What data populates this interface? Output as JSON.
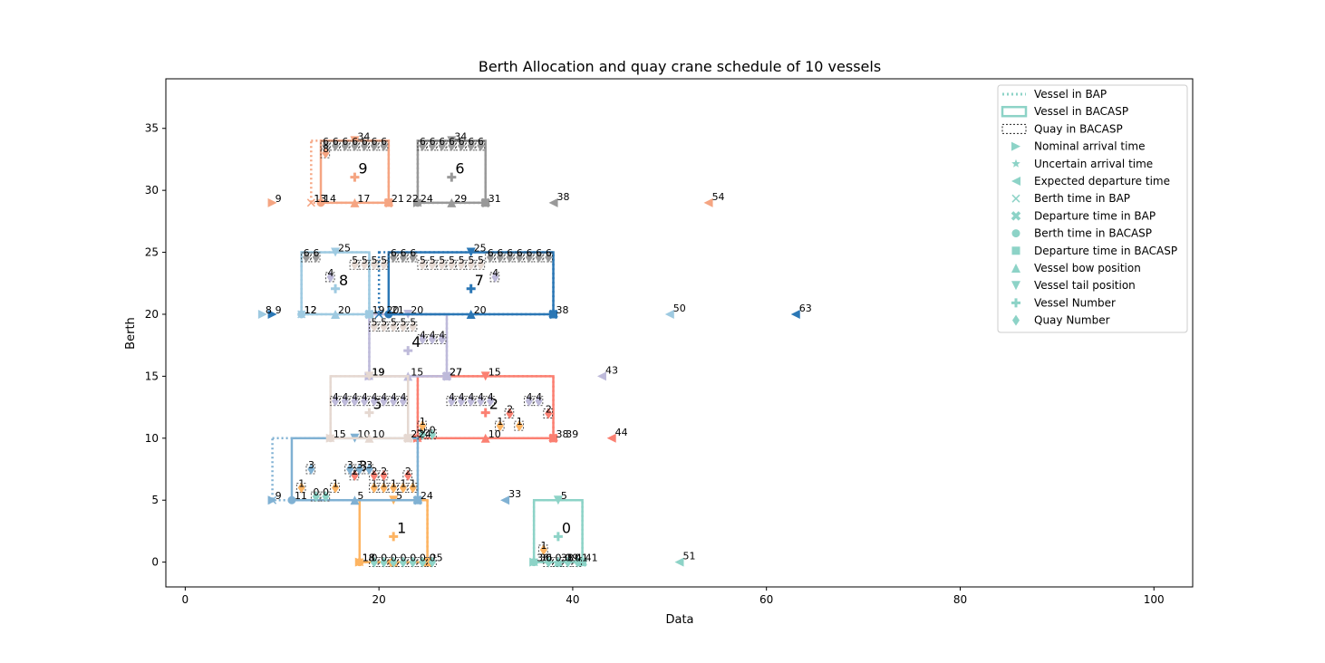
{
  "chart_data": {
    "type": "scatter",
    "title": "Berth Allocation and quay crane schedule  of 10 vessels",
    "xlabel": "Data",
    "ylabel": "Berth",
    "xlim": [
      -2,
      104
    ],
    "ylim": [
      -2,
      39
    ],
    "xticks": [
      "0",
      "20",
      "40",
      "60",
      "80",
      "100"
    ],
    "yticks": [
      "0",
      "5",
      "10",
      "15",
      "20",
      "25",
      "30",
      "35"
    ],
    "legend_position": "top-right",
    "legend": [
      {
        "label": "Vessel in BAP",
        "symbol": "dotted-line"
      },
      {
        "label": "Vessel in BACASP",
        "symbol": "solid-rect"
      },
      {
        "label": "Quay in BACASP",
        "symbol": "dashed-rect"
      },
      {
        "label": "Nominal arrival time",
        "symbol": "triangle-right"
      },
      {
        "label": "Uncertain arrival time",
        "symbol": "star"
      },
      {
        "label": "Expected departure time",
        "symbol": "triangle-left"
      },
      {
        "label": "Berth time in BAP",
        "symbol": "x"
      },
      {
        "label": "Departure time in BAP",
        "symbol": "x-filled"
      },
      {
        "label": "Berth time in BACASP",
        "symbol": "circle"
      },
      {
        "label": "Departure time in BACASP",
        "symbol": "square"
      },
      {
        "label": "Vessel bow position",
        "symbol": "triangle-up"
      },
      {
        "label": "Vessel tail position",
        "symbol": "triangle-down"
      },
      {
        "label": "Vessel Number",
        "symbol": "plus"
      },
      {
        "label": "Quay Number",
        "symbol": "diamond"
      }
    ],
    "vessels": [
      {
        "id": "0",
        "color": "#8dd3c7",
        "bap": [
          36,
          0,
          41,
          5
        ],
        "bacasp": [
          36,
          0,
          41,
          5
        ],
        "center": [
          38.5,
          2.5
        ],
        "nominal": [
          36,
          0
        ],
        "expected": [
          51,
          0
        ],
        "expected_label": "51",
        "labels": [
          [
            36,
            0,
            "36"
          ],
          [
            39,
            0,
            "39"
          ],
          [
            41,
            0,
            "41"
          ],
          [
            38.5,
            5,
            "5"
          ]
        ]
      },
      {
        "id": "1",
        "color": "#fdb462",
        "bap": [
          18,
          0,
          25,
          5
        ],
        "bacasp": [
          18,
          0,
          25,
          5
        ],
        "center": [
          21.5,
          2.5
        ],
        "nominal": [
          18,
          0
        ],
        "expected": [
          21,
          0
        ],
        "expected_label": "",
        "labels": [
          [
            18,
            0,
            "18"
          ],
          [
            25,
            0,
            "25"
          ],
          [
            21.5,
            5,
            "5"
          ]
        ]
      },
      {
        "id": "2",
        "color": "#fb8072",
        "bap": [
          24,
          10,
          38,
          15
        ],
        "bacasp": [
          24,
          10,
          38,
          15
        ],
        "center": [
          31,
          12.5
        ],
        "nominal": [
          24,
          10
        ],
        "expected": [
          44,
          10
        ],
        "expected_label": "44",
        "labels": [
          [
            38,
            10,
            "38"
          ],
          [
            39,
            10,
            "39"
          ],
          [
            31,
            10,
            "10"
          ],
          [
            31,
            15,
            "15"
          ]
        ]
      },
      {
        "id": "3",
        "color": "#80b1d3",
        "bap": [
          9,
          5,
          24,
          10
        ],
        "bacasp": [
          11,
          5,
          24,
          10
        ],
        "center": [
          17.5,
          7.5
        ],
        "nominal": [
          9,
          5
        ],
        "expected": [
          33,
          5
        ],
        "expected_label": "33",
        "labels": [
          [
            9,
            5,
            "9"
          ],
          [
            11,
            5,
            "11"
          ],
          [
            24,
            5,
            "24"
          ],
          [
            17.5,
            5,
            "5"
          ],
          [
            17.5,
            10,
            "10"
          ]
        ]
      },
      {
        "id": "4",
        "color": "#bebada",
        "bap": [
          19,
          15,
          27,
          20
        ],
        "bacasp": [
          19,
          15,
          27,
          20
        ],
        "center": [
          23,
          17.5
        ],
        "nominal": [
          19,
          15
        ],
        "expected": [
          43,
          15
        ],
        "expected_label": "43",
        "labels": [
          [
            19,
            15,
            "19"
          ],
          [
            27,
            15,
            "27"
          ],
          [
            23,
            15,
            "15"
          ],
          [
            23,
            20,
            "20"
          ]
        ]
      },
      {
        "id": "5",
        "color": "#e5d8d1",
        "bap": [
          15,
          10,
          23,
          15
        ],
        "bacasp": [
          15,
          10,
          23,
          15
        ],
        "center": [
          19,
          12.5
        ],
        "nominal": [
          15,
          10
        ],
        "expected": [
          23,
          10
        ],
        "expected_label": "",
        "labels": [
          [
            15,
            10,
            "15"
          ],
          [
            23,
            10,
            "23"
          ],
          [
            19,
            10,
            "10"
          ],
          [
            19,
            15,
            "19"
          ]
        ]
      },
      {
        "id": "6",
        "color": "#999999",
        "bap": [
          24,
          29,
          31,
          34
        ],
        "bacasp": [
          24,
          29,
          31,
          34
        ],
        "center": [
          27.5,
          31.5
        ],
        "nominal": [
          24,
          29
        ],
        "expected": [
          38,
          29
        ],
        "expected_label": "38",
        "labels": [
          [
            24,
            29,
            "24"
          ],
          [
            31,
            29,
            "31"
          ],
          [
            27.5,
            29,
            "29"
          ],
          [
            27.5,
            34,
            "34"
          ]
        ]
      },
      {
        "id": "7",
        "color": "#2b77b5",
        "bap": [
          20,
          20,
          38,
          25
        ],
        "bacasp": [
          21,
          20,
          38,
          25
        ],
        "center": [
          29.5,
          22.5
        ],
        "nominal": [
          9,
          20
        ],
        "expected": [
          63,
          20
        ],
        "expected_label": "63",
        "labels": [
          [
            38,
            20,
            "38"
          ],
          [
            29.5,
            20,
            "20"
          ],
          [
            29.5,
            25,
            "25"
          ],
          [
            9,
            20,
            "9"
          ],
          [
            21,
            20,
            "21"
          ]
        ]
      },
      {
        "id": "8",
        "color": "#9ecae1",
        "bap": [
          12,
          20,
          19,
          25
        ],
        "bacasp": [
          12,
          20,
          19,
          25
        ],
        "center": [
          15.5,
          22.5
        ],
        "nominal": [
          8,
          20
        ],
        "expected": [
          50,
          20
        ],
        "expected_label": "50",
        "labels": [
          [
            8,
            20,
            "8"
          ],
          [
            12,
            20,
            "12"
          ],
          [
            19,
            20,
            "19"
          ],
          [
            15.5,
            20,
            "20"
          ],
          [
            15.5,
            25,
            "25"
          ]
        ]
      },
      {
        "id": "9",
        "color": "#f5a582",
        "bap": [
          13,
          29,
          21,
          34
        ],
        "bacasp": [
          14,
          29,
          21,
          34
        ],
        "center": [
          17.5,
          31.5
        ],
        "nominal": [
          9,
          29
        ],
        "expected": [
          54,
          29
        ],
        "expected_label": "54",
        "labels": [
          [
            9,
            29,
            "9"
          ],
          [
            13,
            29,
            "13"
          ],
          [
            14,
            29,
            "14"
          ],
          [
            21,
            29,
            "21"
          ],
          [
            17.5,
            29,
            "17"
          ],
          [
            17.5,
            34,
            "34"
          ]
        ]
      }
    ],
    "quays": [
      {
        "x": 19,
        "y": 0,
        "w": 7,
        "color": "#8dd3c7",
        "numbers": [
          "0",
          "0",
          "0",
          "0",
          "0",
          "0",
          "0"
        ]
      },
      {
        "x": 37,
        "y": 0,
        "w": 4,
        "color": "#8dd3c7",
        "numbers": [
          "0",
          "0",
          "0",
          "0"
        ]
      },
      {
        "x": 36.5,
        "y": 1,
        "w": 1,
        "color": "#fdb462",
        "numbers": [
          "1"
        ]
      },
      {
        "x": 11.5,
        "y": 6,
        "w": 1,
        "color": "#fdb462",
        "numbers": [
          "1"
        ]
      },
      {
        "x": 15,
        "y": 6,
        "w": 1,
        "color": "#fdb462",
        "numbers": [
          "1"
        ]
      },
      {
        "x": 19,
        "y": 6,
        "w": 5,
        "color": "#fdb462",
        "numbers": [
          "1",
          "1",
          "1",
          "1",
          "1"
        ]
      },
      {
        "x": 13,
        "y": 5.3,
        "w": 2,
        "color": "#8dd3c7",
        "numbers": [
          "0",
          "0"
        ]
      },
      {
        "x": 17,
        "y": 7,
        "w": 1,
        "color": "#fb8072",
        "numbers": [
          "2"
        ]
      },
      {
        "x": 19,
        "y": 7,
        "w": 2,
        "color": "#fb8072",
        "numbers": [
          "2",
          "2"
        ]
      },
      {
        "x": 22.5,
        "y": 7,
        "w": 1,
        "color": "#fb8072",
        "numbers": [
          "2"
        ]
      },
      {
        "x": 12.5,
        "y": 7.5,
        "w": 1,
        "color": "#80b1d3",
        "numbers": [
          "3"
        ]
      },
      {
        "x": 16.5,
        "y": 7.5,
        "w": 3,
        "color": "#80b1d3",
        "numbers": [
          "3",
          "3",
          "3"
        ]
      },
      {
        "x": 24,
        "y": 10.3,
        "w": 2,
        "color": "#8dd3c7",
        "numbers": [
          "0",
          "0"
        ]
      },
      {
        "x": 24,
        "y": 11,
        "w": 1,
        "color": "#fdb462",
        "numbers": [
          "1"
        ]
      },
      {
        "x": 32,
        "y": 11,
        "w": 1,
        "color": "#fdb462",
        "numbers": [
          "1"
        ]
      },
      {
        "x": 34,
        "y": 11,
        "w": 1,
        "color": "#fdb462",
        "numbers": [
          "1"
        ]
      },
      {
        "x": 33,
        "y": 12,
        "w": 1,
        "color": "#fb8072",
        "numbers": [
          "2"
        ]
      },
      {
        "x": 37,
        "y": 12,
        "w": 1,
        "color": "#fb8072",
        "numbers": [
          "2"
        ]
      },
      {
        "x": 15,
        "y": 13,
        "w": 8,
        "color": "#bebada",
        "numbers": [
          "4",
          "4",
          "4",
          "4",
          "4",
          "4",
          "4",
          "4"
        ]
      },
      {
        "x": 27,
        "y": 13,
        "w": 5,
        "color": "#bebada",
        "numbers": [
          "4",
          "4",
          "4",
          "4",
          "4"
        ]
      },
      {
        "x": 35,
        "y": 13,
        "w": 2,
        "color": "#bebada",
        "numbers": [
          "4",
          "4"
        ]
      },
      {
        "x": 19,
        "y": 19,
        "w": 5,
        "color": "#e5d8d1",
        "numbers": [
          "5",
          "5",
          "5",
          "5",
          "5"
        ]
      },
      {
        "x": 24,
        "y": 18,
        "w": 3,
        "color": "#bebada",
        "numbers": [
          "4",
          "4",
          "4"
        ]
      },
      {
        "x": 14.5,
        "y": 23,
        "w": 1,
        "color": "#bebada",
        "numbers": [
          "4"
        ]
      },
      {
        "x": 31.5,
        "y": 23,
        "w": 1,
        "color": "#bebada",
        "numbers": [
          "4"
        ]
      },
      {
        "x": 17,
        "y": 24,
        "w": 4,
        "color": "#e5d8d1",
        "numbers": [
          "5",
          "5",
          "5",
          "5"
        ]
      },
      {
        "x": 24,
        "y": 24,
        "w": 7,
        "color": "#e5d8d1",
        "numbers": [
          "5",
          "5",
          "5",
          "5",
          "5",
          "5",
          "5"
        ]
      },
      {
        "x": 12,
        "y": 24.6,
        "w": 2,
        "color": "#999999",
        "numbers": [
          "6",
          "6"
        ]
      },
      {
        "x": 21,
        "y": 24.6,
        "w": 3,
        "color": "#999999",
        "numbers": [
          "6",
          "6",
          "6"
        ]
      },
      {
        "x": 31,
        "y": 24.6,
        "w": 7,
        "color": "#999999",
        "numbers": [
          "6",
          "6",
          "6",
          "6",
          "6",
          "6",
          "6"
        ]
      },
      {
        "x": 14,
        "y": 33.6,
        "w": 7,
        "color": "#999999",
        "numbers": [
          "6",
          "6",
          "6",
          "6",
          "6",
          "6",
          "6"
        ]
      },
      {
        "x": 24,
        "y": 33.6,
        "w": 7,
        "color": "#999999",
        "numbers": [
          "6",
          "6",
          "6",
          "6",
          "6",
          "6",
          "6"
        ]
      },
      {
        "x": 14,
        "y": 33,
        "w": 1,
        "color": "#f5a582",
        "numbers": [
          "8"
        ]
      }
    ],
    "extra_labels": [
      {
        "x": 13,
        "y": 29,
        "text": "13"
      },
      {
        "x": 22.5,
        "y": 29,
        "text": "22"
      },
      {
        "x": 20.5,
        "y": 20,
        "text": "20"
      },
      {
        "x": 19,
        "y": 15,
        "text": "19"
      },
      {
        "x": 27,
        "y": 15,
        "text": "27"
      },
      {
        "x": 23.8,
        "y": 10,
        "text": "24"
      },
      {
        "x": 12,
        "y": 20,
        "text": "12"
      },
      {
        "x": 18,
        "y": 0,
        "text": "18"
      },
      {
        "x": 36.3,
        "y": 0,
        "text": "36"
      },
      {
        "x": 38.5,
        "y": 0,
        "text": "38"
      },
      {
        "x": 40,
        "y": 0,
        "text": "41"
      }
    ]
  }
}
